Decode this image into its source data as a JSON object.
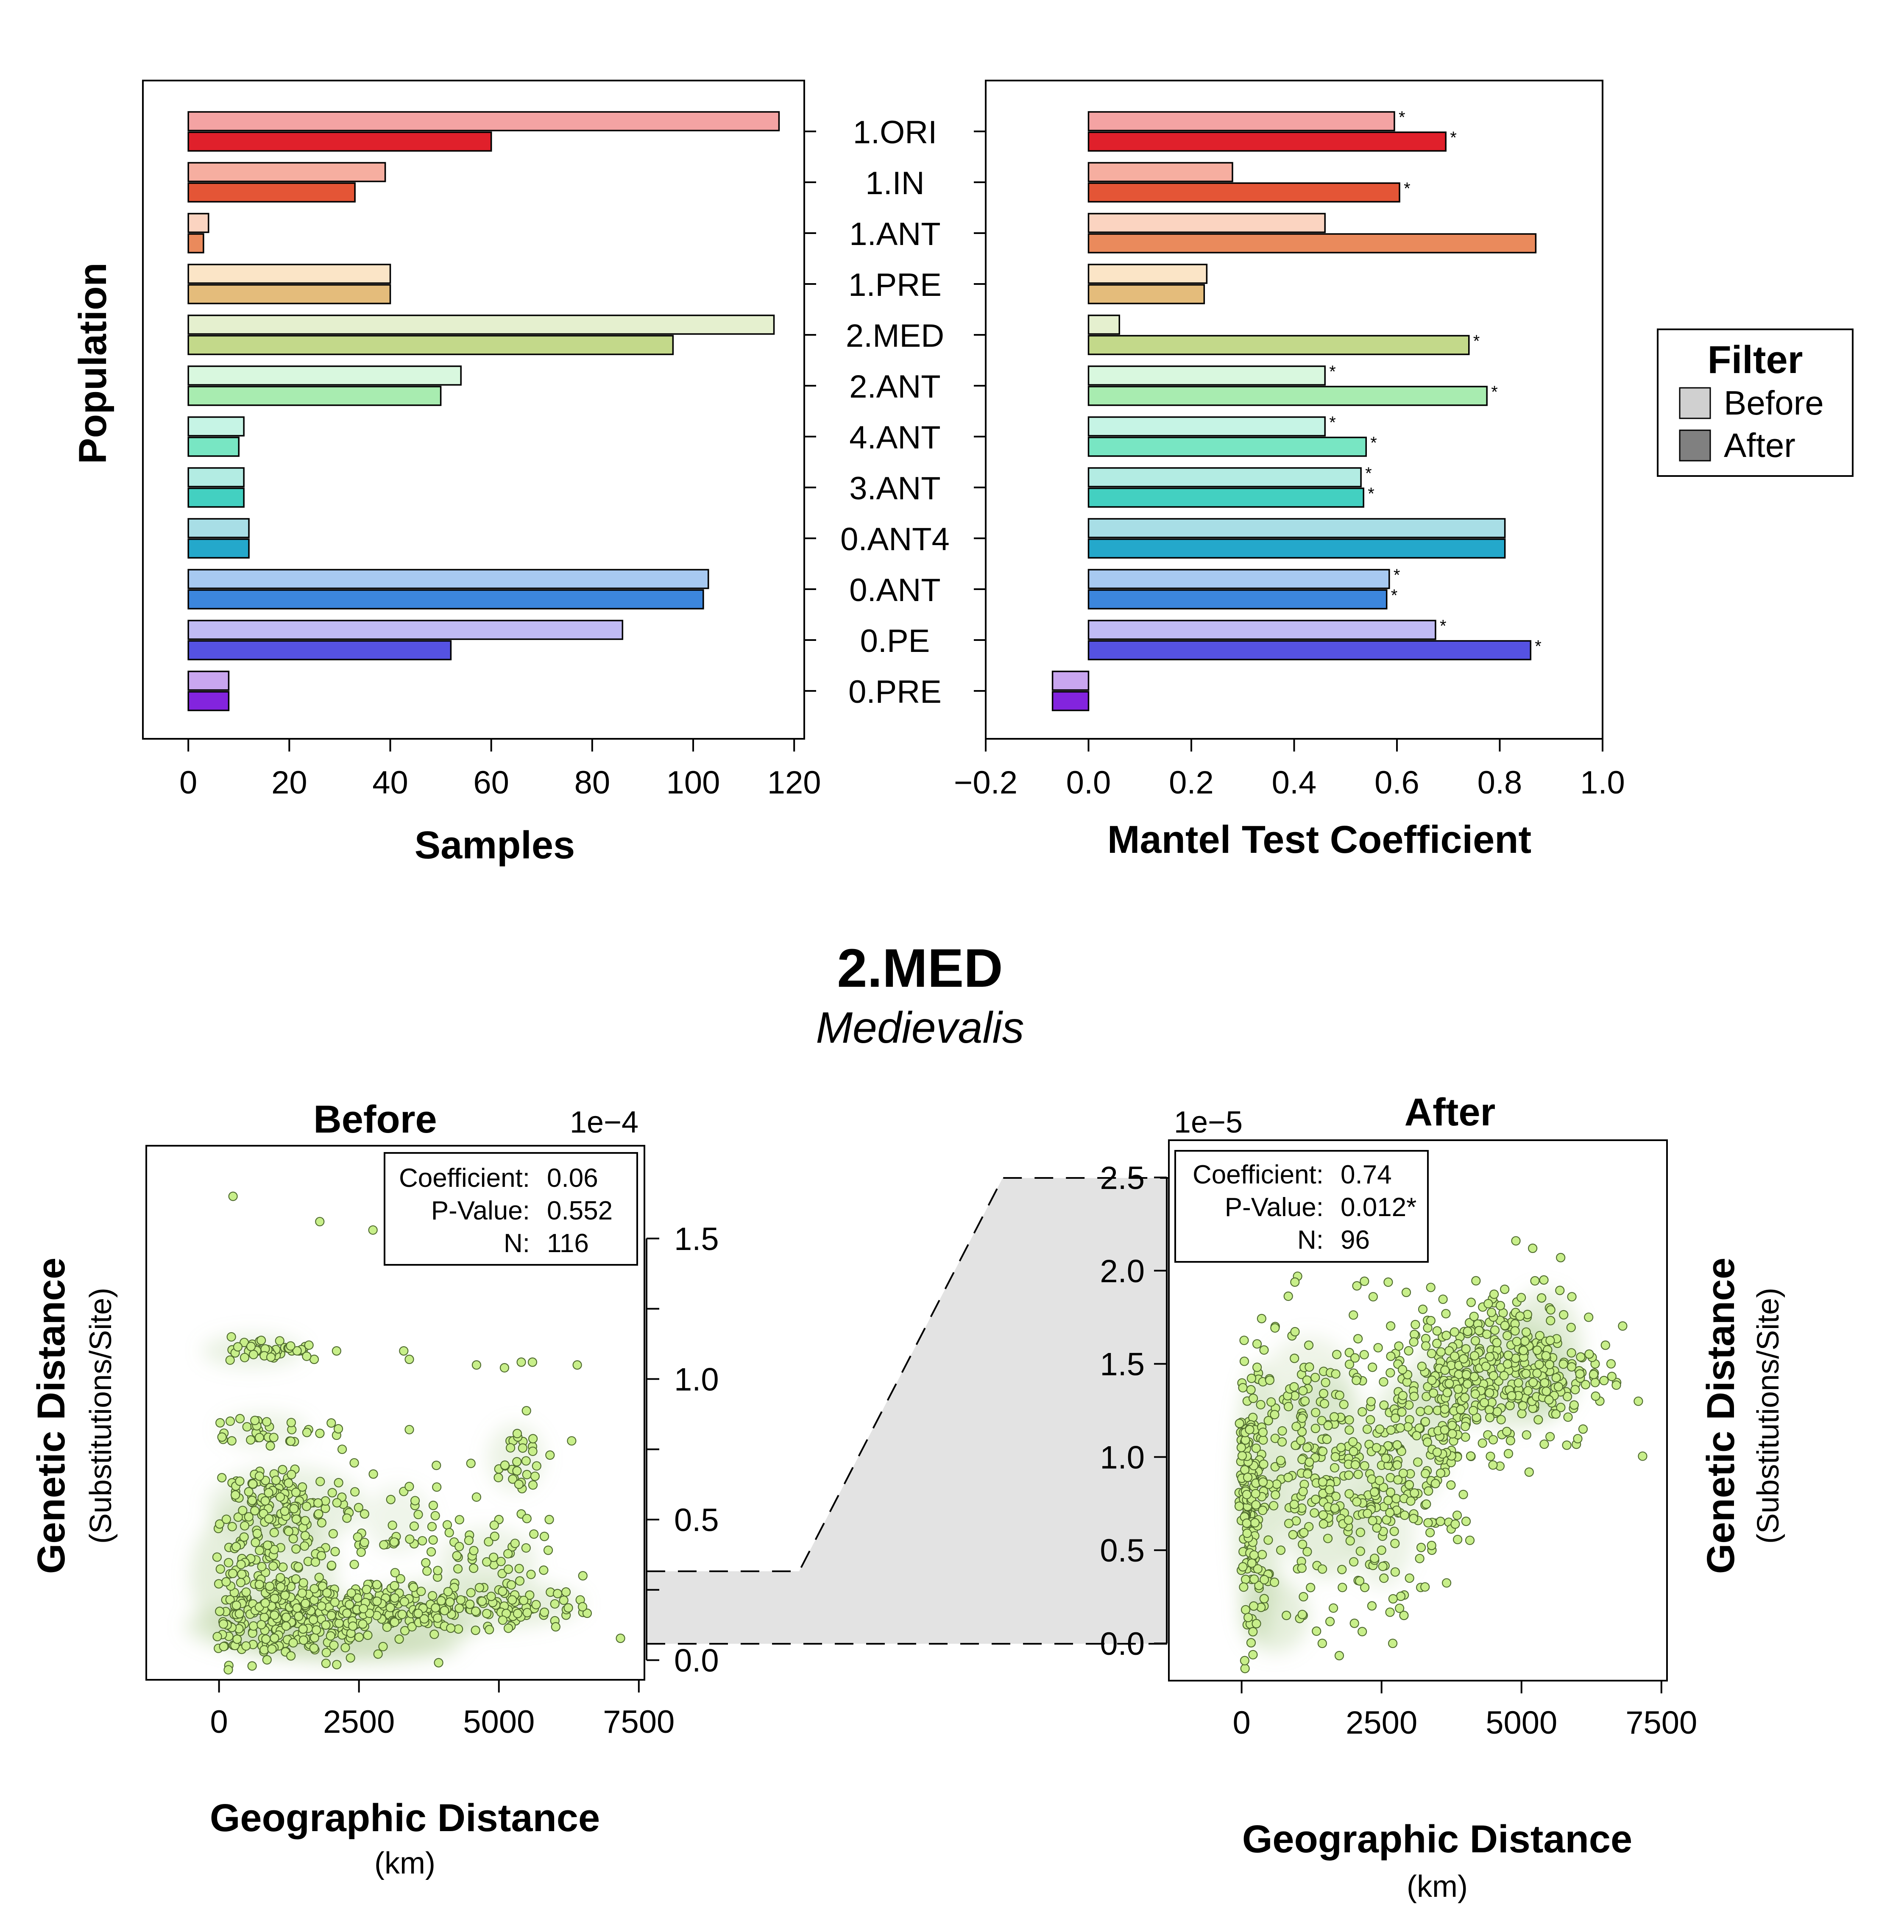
{
  "legend": {
    "title": "Filter",
    "items": [
      {
        "label": "Before",
        "color": "#d0d0d0"
      },
      {
        "label": "After",
        "color": "#808080"
      }
    ]
  },
  "focus": {
    "title": "2.MED",
    "subtitle": "Medievalis"
  },
  "chart_data": [
    {
      "type": "bar",
      "orientation": "horizontal",
      "ylabel": "Population",
      "xlabel": "Samples",
      "xlim": [
        -9,
        122
      ],
      "xticks": [
        "0",
        "20",
        "40",
        "60",
        "80",
        "100",
        "120"
      ],
      "categories": [
        "1.ORI",
        "1.IN",
        "1.ANT",
        "1.PRE",
        "2.MED",
        "2.ANT",
        "4.ANT",
        "3.ANT",
        "0.ANT4",
        "0.ANT",
        "0.PE",
        "0.PRE"
      ],
      "colors_before": [
        "#f4a3a3",
        "#f6aea0",
        "#fbd4c1",
        "#fbe5c7",
        "#e5f0cf",
        "#d9f8df",
        "#c6f4e5",
        "#b3ece3",
        "#a8dee6",
        "#a7c9f1",
        "#c0bbf4",
        "#c9a6f0"
      ],
      "colors_after": [
        "#e0202b",
        "#e45536",
        "#ea8a5c",
        "#e4bc7b",
        "#c3d98a",
        "#a8ecb0",
        "#78e6c3",
        "#43d0c1",
        "#24a8cb",
        "#3c86dd",
        "#5552e2",
        "#8324de"
      ],
      "series": [
        {
          "name": "Before",
          "values": [
            117,
            39,
            4,
            40,
            116,
            54,
            11,
            11,
            12,
            103,
            86,
            8
          ]
        },
        {
          "name": "After",
          "values": [
            60,
            33,
            3,
            40,
            96,
            50,
            10,
            11,
            12,
            102,
            52,
            8
          ]
        }
      ]
    },
    {
      "type": "bar",
      "orientation": "horizontal",
      "xlabel": "Mantel Test Coefficient",
      "xlim": [
        -0.2,
        1.0
      ],
      "xticks": [
        "−0.2",
        "0.0",
        "0.2",
        "0.4",
        "0.6",
        "0.8",
        "1.0"
      ],
      "categories": [
        "1.ORI",
        "1.IN",
        "1.ANT",
        "1.PRE",
        "2.MED",
        "2.ANT",
        "4.ANT",
        "3.ANT",
        "0.ANT4",
        "0.ANT",
        "0.PE",
        "0.PRE"
      ],
      "series": [
        {
          "name": "Before",
          "values": [
            0.595,
            0.28,
            0.46,
            0.23,
            0.06,
            0.46,
            0.46,
            0.53,
            0.81,
            0.585,
            0.675,
            -0.07
          ],
          "significant": [
            true,
            false,
            false,
            false,
            false,
            true,
            true,
            true,
            false,
            true,
            true,
            false
          ]
        },
        {
          "name": "After",
          "values": [
            0.695,
            0.605,
            0.87,
            0.225,
            0.74,
            0.775,
            0.54,
            0.535,
            0.81,
            0.58,
            0.86,
            -0.07
          ],
          "significant": [
            true,
            true,
            false,
            false,
            true,
            true,
            true,
            true,
            false,
            true,
            true,
            false
          ]
        }
      ],
      "significance_marker": "*"
    },
    {
      "type": "scatter",
      "title": "Before",
      "scale_label": "1e−4",
      "xlabel": "Geographic Distance",
      "xlabel_unit": "(km)",
      "ylabel": "Genetic Distance",
      "ylabel_unit": "(Substitutions/Site)",
      "xlim": [
        -1300,
        7600
      ],
      "ylim": [
        -0.07,
        1.83
      ],
      "xticks": [
        "0",
        "2500",
        "5000",
        "7500"
      ],
      "yticks": [
        "0.0",
        "0.5",
        "1.0",
        "1.5"
      ],
      "stats": {
        "coefficient_label": "Coefficient:",
        "coefficient": "0.06",
        "p_label": "P-Value:",
        "p_value": "0.552",
        "n_label": "N:",
        "n": "116"
      },
      "point_color": "#c8ef8a",
      "density_color": "#a9c98a",
      "points": [
        [
          250,
          1.65
        ],
        [
          1800,
          1.56
        ],
        [
          2750,
          1.53
        ],
        [
          220,
          1.15
        ],
        [
          450,
          1.13
        ],
        [
          700,
          1.1
        ],
        [
          900,
          1.1
        ],
        [
          1100,
          1.09
        ],
        [
          1300,
          1.1
        ],
        [
          1500,
          1.1
        ],
        [
          1700,
          1.07
        ],
        [
          2100,
          1.1
        ],
        [
          3300,
          1.1
        ],
        [
          3400,
          1.07
        ],
        [
          4600,
          1.05
        ],
        [
          5400,
          1.06
        ],
        [
          5600,
          1.06
        ],
        [
          6400,
          1.05
        ],
        [
          5100,
          1.04
        ],
        [
          200,
          0.85
        ],
        [
          500,
          0.83
        ],
        [
          900,
          0.83
        ],
        [
          1300,
          0.82
        ],
        [
          1600,
          0.82
        ],
        [
          2100,
          0.8
        ],
        [
          2200,
          0.75
        ],
        [
          3400,
          0.82
        ],
        [
          5200,
          0.78
        ],
        [
          5600,
          0.76
        ],
        [
          6300,
          0.78
        ],
        [
          4500,
          0.7
        ],
        [
          5000,
          0.68
        ],
        [
          5500,
          0.66
        ],
        [
          300,
          0.58
        ],
        [
          600,
          0.56
        ],
        [
          900,
          0.55
        ],
        [
          1200,
          0.56
        ],
        [
          1500,
          0.58
        ],
        [
          1900,
          0.54
        ],
        [
          2300,
          0.53
        ],
        [
          2600,
          0.52
        ],
        [
          3300,
          0.6
        ],
        [
          3500,
          0.55
        ],
        [
          4600,
          0.58
        ],
        [
          5000,
          0.5
        ],
        [
          5400,
          0.52
        ],
        [
          5900,
          0.5
        ],
        [
          300,
          0.32
        ],
        [
          700,
          0.3
        ],
        [
          1100,
          0.28
        ],
        [
          1500,
          0.26
        ],
        [
          2000,
          0.25
        ],
        [
          2500,
          0.24
        ],
        [
          3000,
          0.24
        ],
        [
          3500,
          0.22
        ],
        [
          4000,
          0.22
        ],
        [
          4500,
          0.24
        ],
        [
          5000,
          0.25
        ],
        [
          5500,
          0.21
        ],
        [
          6000,
          0.2
        ],
        [
          6500,
          0.17
        ],
        [
          200,
          0.12
        ],
        [
          600,
          0.1
        ],
        [
          1000,
          0.08
        ],
        [
          1400,
          0.09
        ],
        [
          1800,
          0.1
        ],
        [
          2200,
          0.11
        ],
        [
          2600,
          0.12
        ],
        [
          3000,
          0.13
        ],
        [
          3400,
          0.14
        ],
        [
          3800,
          0.15
        ],
        [
          4200,
          0.16
        ],
        [
          4600,
          0.17
        ],
        [
          5000,
          0.18
        ],
        [
          5400,
          0.17
        ],
        [
          5800,
          0.16
        ],
        [
          6200,
          0.16
        ],
        [
          400,
          0.04
        ],
        [
          800,
          0.03
        ],
        [
          1200,
          0.03
        ],
        [
          1600,
          0.05
        ],
        [
          100,
          0.05
        ],
        [
          300,
          0.18
        ],
        [
          500,
          0.22
        ],
        [
          800,
          0.2
        ],
        [
          1000,
          0.19
        ],
        [
          1300,
          0.17
        ],
        [
          1700,
          0.18
        ],
        [
          2100,
          0.16
        ],
        [
          2400,
          0.17
        ],
        [
          2800,
          0.18
        ],
        [
          3200,
          0.2
        ],
        [
          4400,
          0.2
        ],
        [
          5300,
          0.14
        ],
        [
          6000,
          0.14
        ],
        [
          4800,
          0.12
        ],
        [
          4100,
          0.18
        ],
        [
          3600,
          0.19
        ],
        [
          700,
          0.44
        ],
        [
          1100,
          0.4
        ],
        [
          1600,
          0.43
        ],
        [
          2500,
          0.41
        ],
        [
          4200,
          0.42
        ],
        [
          5200,
          0.38
        ],
        [
          5800,
          0.32
        ],
        [
          6500,
          0.3
        ]
      ]
    },
    {
      "type": "scatter",
      "title": "After",
      "scale_label": "1e−5",
      "xlabel": "Geographic Distance",
      "xlabel_unit": "(km)",
      "ylabel": "Genetic Distance",
      "ylabel_unit": "(Substitutions/Site)",
      "xlim": [
        -1300,
        7600
      ],
      "ylim": [
        -0.2,
        2.7
      ],
      "xticks": [
        "0",
        "2500",
        "5000",
        "7500"
      ],
      "yticks": [
        "0.0",
        "0.5",
        "1.0",
        "1.5",
        "2.0",
        "2.5"
      ],
      "stats": {
        "coefficient_label": "Coefficient:",
        "coefficient": "0.74",
        "p_label": "P-Value:",
        "p_value": "0.012*",
        "n_label": "N:",
        "n": "96"
      },
      "point_color": "#c8ef8a",
      "density_color": "#a9c98a",
      "points": [
        [
          1000,
          1.97
        ],
        [
          4900,
          2.16
        ],
        [
          5200,
          2.12
        ],
        [
          5700,
          2.07
        ],
        [
          2350,
          1.86
        ],
        [
          4100,
          1.83
        ],
        [
          4700,
          1.9
        ],
        [
          5400,
          1.95
        ],
        [
          5900,
          1.86
        ],
        [
          6200,
          1.75
        ],
        [
          6500,
          1.6
        ],
        [
          6600,
          1.5
        ],
        [
          6700,
          1.4
        ],
        [
          6400,
          1.3
        ],
        [
          6100,
          1.15
        ],
        [
          5800,
          1.35
        ],
        [
          5500,
          1.5
        ],
        [
          5200,
          1.6
        ],
        [
          4900,
          1.45
        ],
        [
          4500,
          1.35
        ],
        [
          4200,
          1.2
        ],
        [
          3900,
          1.3
        ],
        [
          3600,
          1.0
        ],
        [
          3300,
          1.1
        ],
        [
          3000,
          1.2
        ],
        [
          2700,
          0.95
        ],
        [
          2400,
          0.85
        ],
        [
          2100,
          1.0
        ],
        [
          1800,
          1.2
        ],
        [
          1500,
          1.4
        ],
        [
          1200,
          1.6
        ],
        [
          900,
          1.65
        ],
        [
          600,
          1.7
        ],
        [
          300,
          1.45
        ],
        [
          100,
          1.3
        ],
        [
          100,
          1.0
        ],
        [
          100,
          0.7
        ],
        [
          100,
          0.4
        ],
        [
          100,
          0.1
        ],
        [
          400,
          0.2
        ],
        [
          700,
          0.5
        ],
        [
          1000,
          0.4
        ],
        [
          1300,
          0.7
        ],
        [
          1600,
          0.8
        ],
        [
          1900,
          0.6
        ],
        [
          2200,
          0.3
        ],
        [
          2500,
          0.5
        ],
        [
          2800,
          0.7
        ],
        [
          3100,
          0.8
        ],
        [
          3400,
          0.5
        ],
        [
          3700,
          0.65
        ],
        [
          3000,
          0.35
        ],
        [
          2700,
          0.0
        ],
        [
          2900,
          0.15
        ],
        [
          3200,
          0.3
        ],
        [
          4300,
          1.5
        ],
        [
          4600,
          1.55
        ],
        [
          5000,
          1.3
        ],
        [
          5300,
          1.2
        ],
        [
          5600,
          1.25
        ],
        [
          5900,
          1.5
        ],
        [
          6300,
          1.45
        ],
        [
          4000,
          1.45
        ],
        [
          3500,
          1.25
        ],
        [
          2000,
          1.45
        ],
        [
          1700,
          1.55
        ],
        [
          600,
          1.1
        ],
        [
          900,
          0.9
        ],
        [
          1200,
          0.95
        ],
        [
          1500,
          1.1
        ],
        [
          2800,
          1.35
        ],
        [
          3300,
          1.45
        ],
        [
          4800,
          1.7
        ],
        [
          5100,
          1.75
        ],
        [
          5500,
          1.8
        ],
        [
          400,
          0.8
        ],
        [
          800,
          0.15
        ],
        [
          1100,
          0.15
        ],
        [
          1800,
          0.3
        ],
        [
          2300,
          1.2
        ]
      ]
    }
  ]
}
